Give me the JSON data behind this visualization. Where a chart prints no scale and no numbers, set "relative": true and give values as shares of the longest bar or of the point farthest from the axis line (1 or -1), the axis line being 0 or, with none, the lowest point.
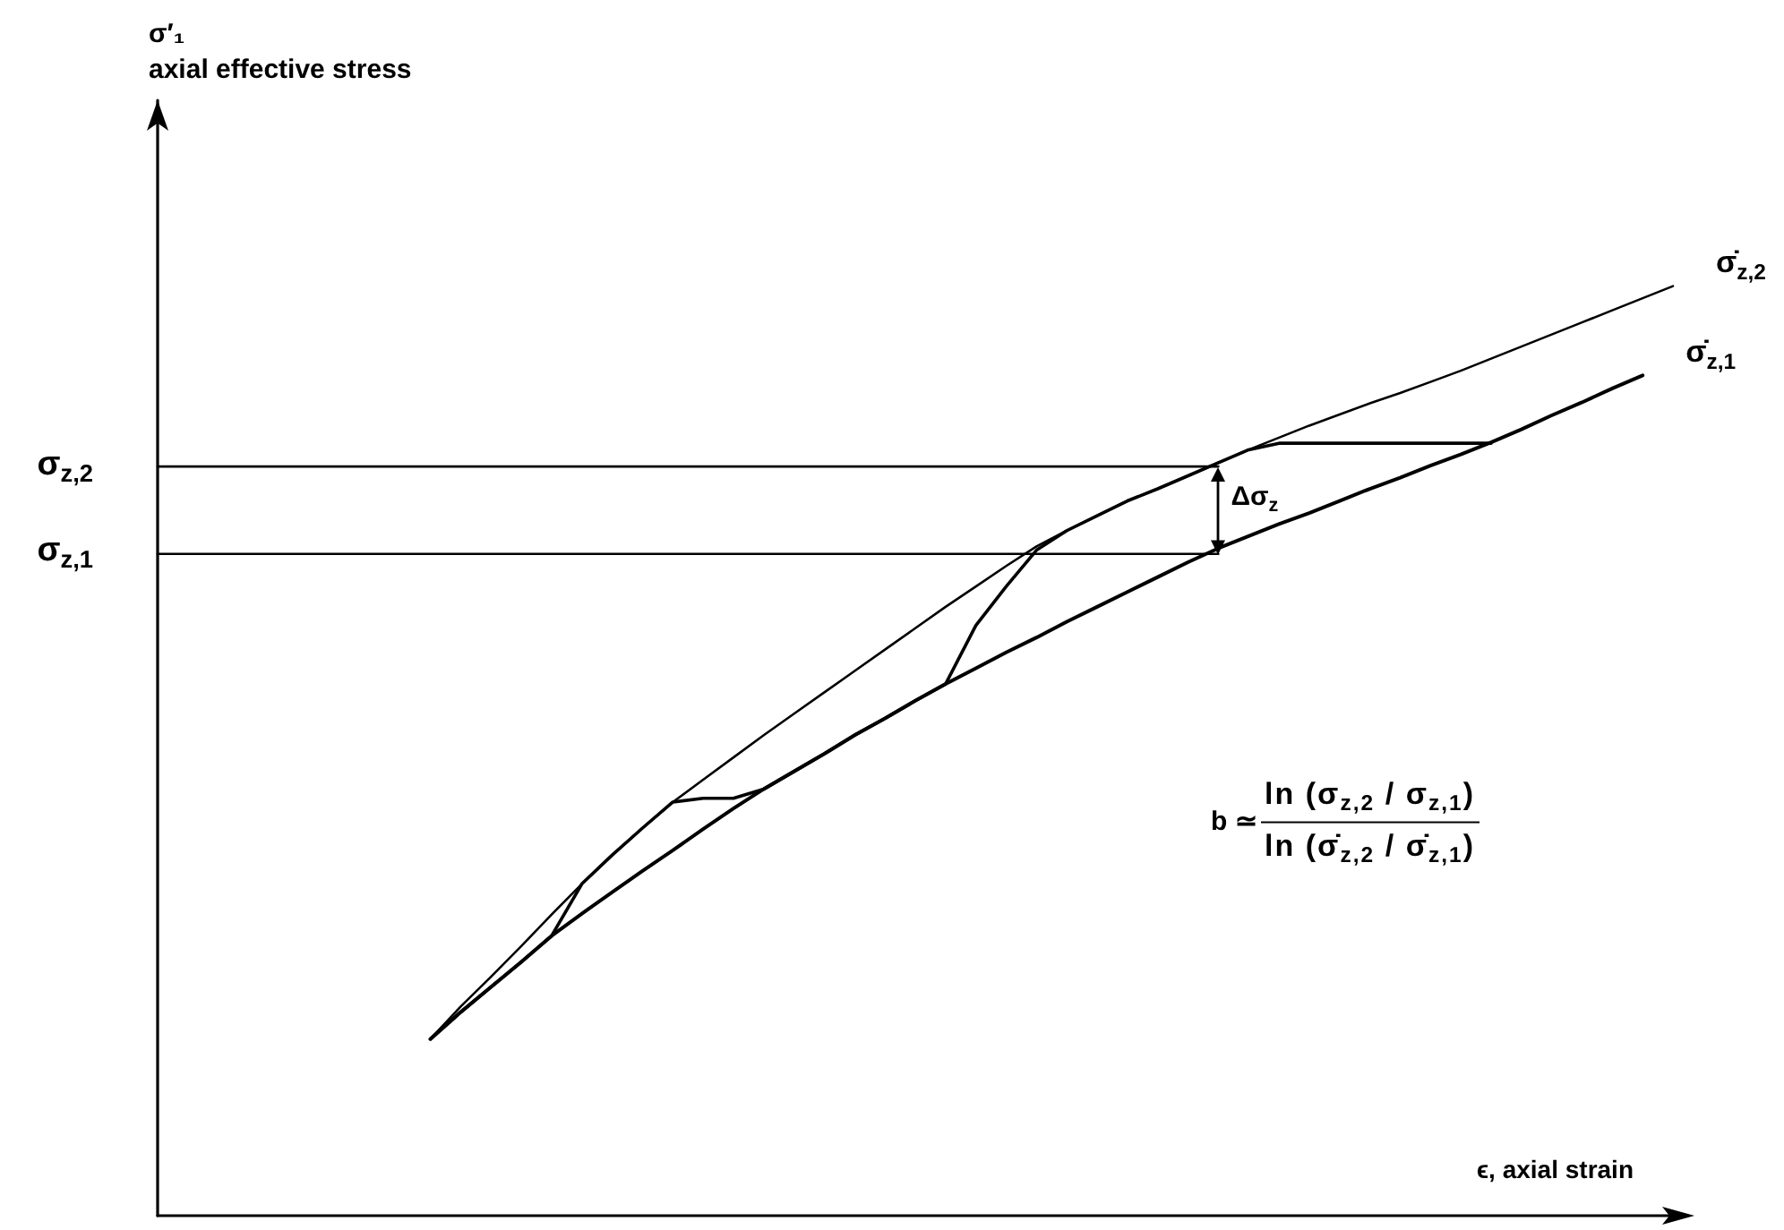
{
  "chart_data": {
    "type": "line",
    "relative": true,
    "xlabel": "ϵ, axial strain",
    "categories": [
      null,
      null,
      null,
      null,
      null,
      null,
      null,
      null,
      null,
      null,
      null,
      null,
      null,
      null,
      null,
      null,
      null,
      null,
      null,
      null,
      null,
      null,
      null,
      null,
      null,
      null,
      null,
      null,
      null,
      null,
      null,
      null,
      null,
      null,
      null,
      null,
      null,
      null,
      null,
      null,
      null,
      null,
      null,
      null,
      null,
      null,
      null,
      null,
      null,
      null,
      null
    ],
    "series": [
      {
        "name": "σ̇$_{z,2}$",
        "color": "#000000",
        "values": [
          null,
          null,
          null,
          null,
          null,
          null,
          null,
          null,
          null,
          0.19,
          0.225,
          0.257,
          0.29,
          0.324,
          0.357,
          0.388,
          0.417,
          0.445,
          0.469,
          0.493,
          0.517,
          0.54,
          0.563,
          0.586,
          0.609,
          0.632,
          0.655,
          0.677,
          0.699,
          0.72,
          0.737,
          0.753,
          0.769,
          0.782,
          0.796,
          0.81,
          0.824,
          0.837,
          0.85,
          0.862,
          0.874,
          0.885,
          0.897,
          0.909,
          0.922,
          0.935,
          0.948,
          0.961,
          0.974,
          0.987,
          1.0
        ]
      },
      {
        "name": "σ̇$_{z,1}$",
        "color": "#000000",
        "values": [
          null,
          null,
          null,
          null,
          null,
          null,
          null,
          null,
          null,
          0.19,
          0.219,
          0.246,
          0.273,
          0.301,
          0.325,
          0.348,
          0.371,
          0.393,
          0.416,
          0.438,
          0.459,
          0.478,
          0.497,
          0.517,
          0.535,
          0.554,
          0.572,
          0.589,
          0.606,
          0.622,
          0.639,
          0.655,
          0.671,
          0.687,
          0.703,
          0.718,
          0.731,
          0.744,
          0.756,
          0.769,
          0.782,
          0.794,
          0.807,
          0.819,
          0.832,
          0.846,
          0.861,
          0.875,
          0.89,
          0.904,
          null
        ]
      },
      {
        "color": "#000000",
        "values": [
          null,
          null,
          null,
          null,
          null,
          null,
          null,
          null,
          null,
          0.19,
          0.219,
          0.246,
          0.273,
          0.301,
          0.357,
          0.388,
          0.417,
          0.445,
          0.449,
          0.449,
          0.459,
          0.478,
          0.497,
          0.517,
          0.535,
          0.554,
          0.572,
          0.635,
          0.677,
          0.716,
          0.737,
          0.753,
          0.769,
          0.782,
          0.796,
          0.81,
          0.824,
          0.831,
          0.831,
          0.831,
          0.831,
          0.831,
          0.831,
          0.831,
          0.831,
          null,
          null,
          null,
          null,
          null,
          null
        ]
      },
      {
        "name": "σ$_{z,2}$",
        "color": "#000000",
        "values": [
          0.806,
          0.806,
          0.806,
          0.806,
          0.806,
          0.806,
          0.806,
          0.806,
          0.806,
          0.806,
          0.806,
          0.806,
          0.806,
          0.806,
          0.806,
          0.806,
          0.806,
          0.806,
          0.806,
          0.806,
          0.806,
          0.806,
          0.806,
          0.806,
          0.806,
          0.806,
          0.806,
          0.806,
          0.806,
          0.806,
          0.806,
          0.806,
          0.806,
          0.806,
          0.806,
          0.806,
          null,
          null,
          null,
          null,
          null,
          null,
          null,
          null,
          null,
          null,
          null,
          null,
          null,
          null,
          null
        ]
      },
      {
        "name": "σ$_{z,1}$",
        "color": "#000000",
        "values": [
          0.712,
          0.712,
          0.712,
          0.712,
          0.712,
          0.712,
          0.712,
          0.712,
          0.712,
          0.712,
          0.712,
          0.712,
          0.712,
          0.712,
          0.712,
          0.712,
          0.712,
          0.712,
          0.712,
          0.712,
          0.712,
          0.712,
          0.712,
          0.712,
          0.712,
          0.712,
          0.712,
          0.712,
          0.712,
          0.712,
          0.712,
          0.712,
          0.712,
          0.712,
          0.712,
          0.712,
          null,
          null,
          null,
          null,
          null,
          null,
          null,
          null,
          null,
          null,
          null,
          null,
          null,
          null,
          null
        ]
      }
    ],
    "annotations": [
      "σ′₁\naxial effective stress",
      "Δσ$_{z}$",
      "b ≃",
      "ln (σ$_{z,2}$ / σ$_{z,1}$)",
      "ln (σ̇$_{z,2}$ / σ̇$_{z,1}$)"
    ],
    "marker": "none",
    "grid": false
  }
}
